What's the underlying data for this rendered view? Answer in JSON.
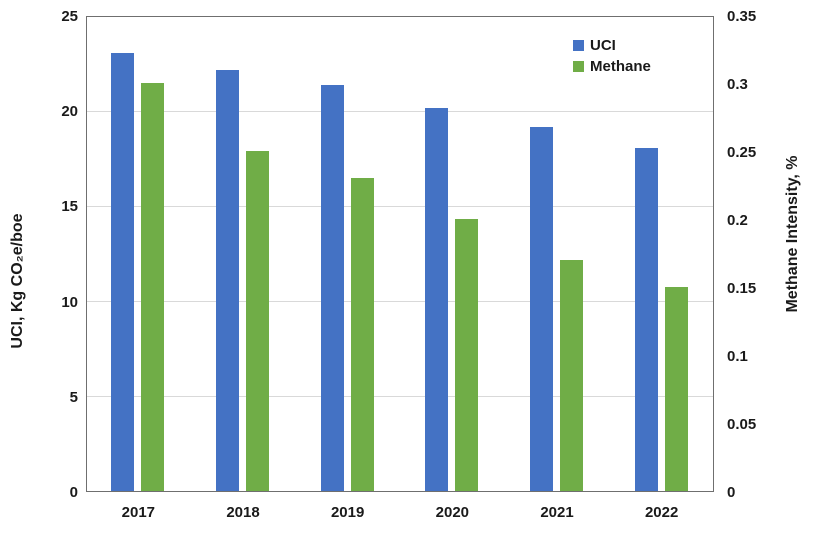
{
  "chart_data": {
    "type": "bar",
    "title": "",
    "categories": [
      "2017",
      "2018",
      "2019",
      "2020",
      "2021",
      "2022"
    ],
    "series": [
      {
        "name": "UCI",
        "axis": "left",
        "color": "#4472C4",
        "values": [
          23.0,
          22.1,
          21.3,
          20.1,
          19.1,
          18.0
        ]
      },
      {
        "name": "Methane",
        "axis": "right",
        "color": "#70AD47",
        "values": [
          0.3,
          0.25,
          0.23,
          0.2,
          0.17,
          0.15
        ]
      }
    ],
    "left_axis": {
      "title": "UCI, Kg CO₂e/boe",
      "range": [
        0,
        25
      ],
      "tick_values": [
        0,
        5,
        10,
        15,
        20,
        25
      ],
      "tick_labels": [
        "0",
        "5",
        "10",
        "15",
        "20",
        "25"
      ],
      "gridline_values": [
        5,
        10,
        15,
        20
      ]
    },
    "right_axis": {
      "title": "Methane Intensity, %",
      "range": [
        0,
        0.35
      ],
      "tick_values": [
        0,
        0.05,
        0.1,
        0.15,
        0.2,
        0.25,
        0.3,
        0.35
      ],
      "tick_labels": [
        "0",
        "0.05",
        "0.1",
        "0.15",
        "0.2",
        "0.25",
        "0.3",
        "0.35"
      ]
    },
    "legend": {
      "position": "top-right-inside",
      "entries": [
        {
          "label": "UCI",
          "color": "#4472C4"
        },
        {
          "label": "Methane",
          "color": "#70AD47"
        }
      ]
    },
    "grid": true,
    "colors": {
      "gridline": "#D9D9D9",
      "frame": "#6F6F6F",
      "text": "#1A1A1A",
      "background": "#FFFFFF"
    }
  }
}
